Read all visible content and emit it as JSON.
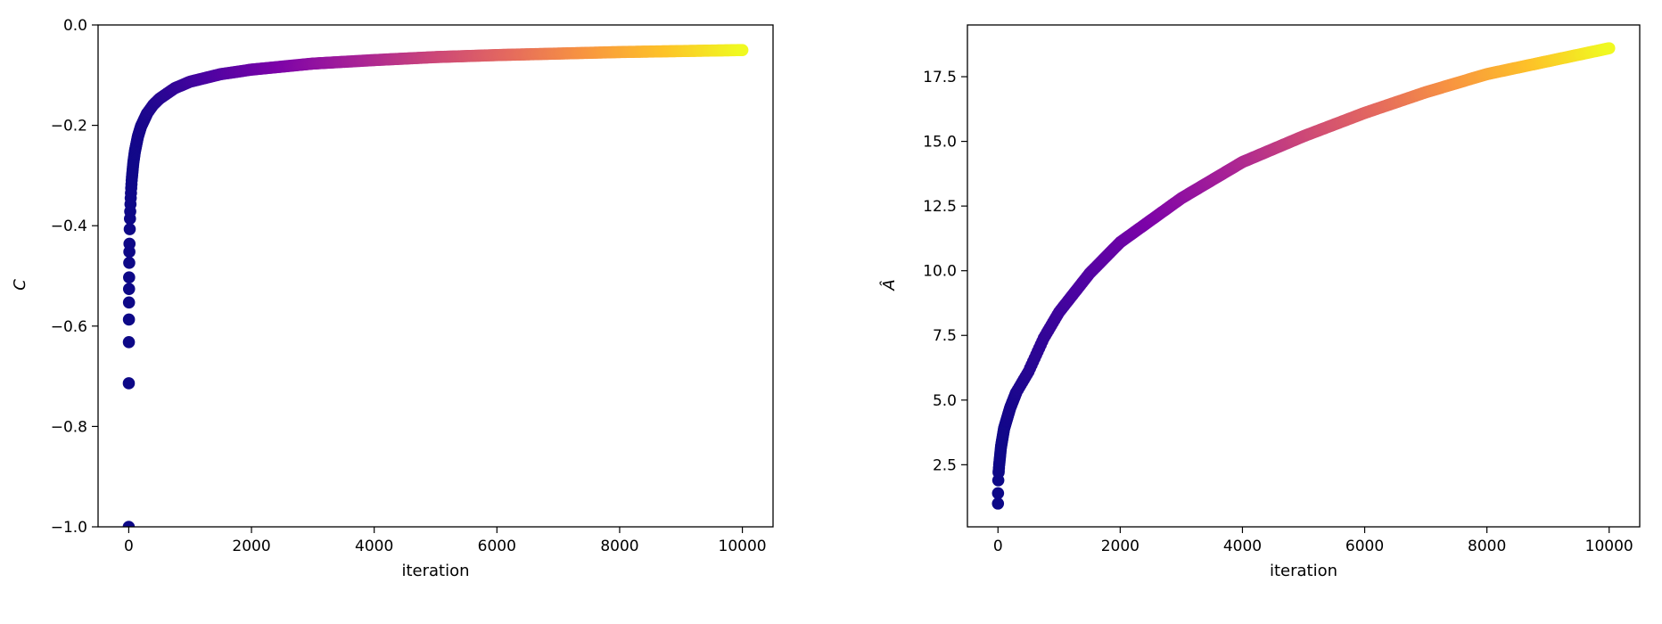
{
  "chart_data": [
    {
      "type": "scatter",
      "xlabel": "iteration",
      "ylabel": "C",
      "xlim": [
        -500,
        10500
      ],
      "ylim": [
        -1.0,
        0.0
      ],
      "xticks": [
        0,
        2000,
        4000,
        6000,
        8000,
        10000
      ],
      "xtick_labels": [
        "0",
        "2000",
        "4000",
        "6000",
        "8000",
        "10000"
      ],
      "yticks": [
        0.0,
        -0.2,
        -0.4,
        -0.6,
        -0.8,
        -1.0
      ],
      "ytick_labels": [
        "0.0",
        "−0.2",
        "−0.4",
        "−0.6",
        "−0.8",
        "−1.0"
      ],
      "colormap": "plasma",
      "grid": false,
      "points": [
        [
          0,
          -1.0
        ],
        [
          1,
          -0.714
        ],
        [
          2,
          -0.632
        ],
        [
          3,
          -0.587
        ],
        [
          4,
          -0.553
        ],
        [
          5,
          -0.526
        ],
        [
          6,
          -0.503
        ],
        [
          8,
          -0.474
        ],
        [
          10,
          -0.452
        ],
        [
          15,
          -0.412
        ],
        [
          20,
          -0.386
        ],
        [
          30,
          -0.35
        ],
        [
          40,
          -0.325
        ],
        [
          50,
          -0.306
        ],
        [
          75,
          -0.274
        ],
        [
          100,
          -0.252
        ],
        [
          150,
          -0.222
        ],
        [
          200,
          -0.202
        ],
        [
          300,
          -0.176
        ],
        [
          400,
          -0.159
        ],
        [
          500,
          -0.147
        ],
        [
          750,
          -0.126
        ],
        [
          1000,
          -0.113
        ],
        [
          1500,
          -0.098
        ],
        [
          2000,
          -0.089
        ],
        [
          3000,
          -0.077
        ],
        [
          4000,
          -0.07
        ],
        [
          5000,
          -0.064
        ],
        [
          6000,
          -0.06
        ],
        [
          7000,
          -0.057
        ],
        [
          8000,
          -0.054
        ],
        [
          9000,
          -0.052
        ],
        [
          10000,
          -0.05
        ]
      ]
    },
    {
      "type": "scatter",
      "xlabel": "iteration",
      "ylabel": "Â",
      "xlim": [
        -500,
        10500
      ],
      "ylim": [
        0.1,
        19.5
      ],
      "xticks": [
        0,
        2000,
        4000,
        6000,
        8000,
        10000
      ],
      "xtick_labels": [
        "0",
        "2000",
        "4000",
        "6000",
        "8000",
        "10000"
      ],
      "yticks": [
        2.5,
        5.0,
        7.5,
        10.0,
        12.5,
        15.0,
        17.5
      ],
      "ytick_labels": [
        "2.5",
        "5.0",
        "7.5",
        "10.0",
        "12.5",
        "15.0",
        "17.5"
      ],
      "colormap": "plasma",
      "grid": false,
      "points": [
        [
          0,
          1.0
        ],
        [
          1,
          1.4
        ],
        [
          5,
          1.9
        ],
        [
          10,
          2.2
        ],
        [
          20,
          2.5
        ],
        [
          50,
          3.2
        ],
        [
          100,
          3.9
        ],
        [
          200,
          4.7
        ],
        [
          300,
          5.3
        ],
        [
          500,
          6.1
        ],
        [
          750,
          7.4
        ],
        [
          1000,
          8.4
        ],
        [
          1500,
          9.9
        ],
        [
          2000,
          11.1
        ],
        [
          3000,
          12.8
        ],
        [
          4000,
          14.2
        ],
        [
          5000,
          15.2
        ],
        [
          6000,
          16.1
        ],
        [
          7000,
          16.9
        ],
        [
          8000,
          17.6
        ],
        [
          9000,
          18.1
        ],
        [
          10000,
          18.6
        ]
      ]
    }
  ]
}
